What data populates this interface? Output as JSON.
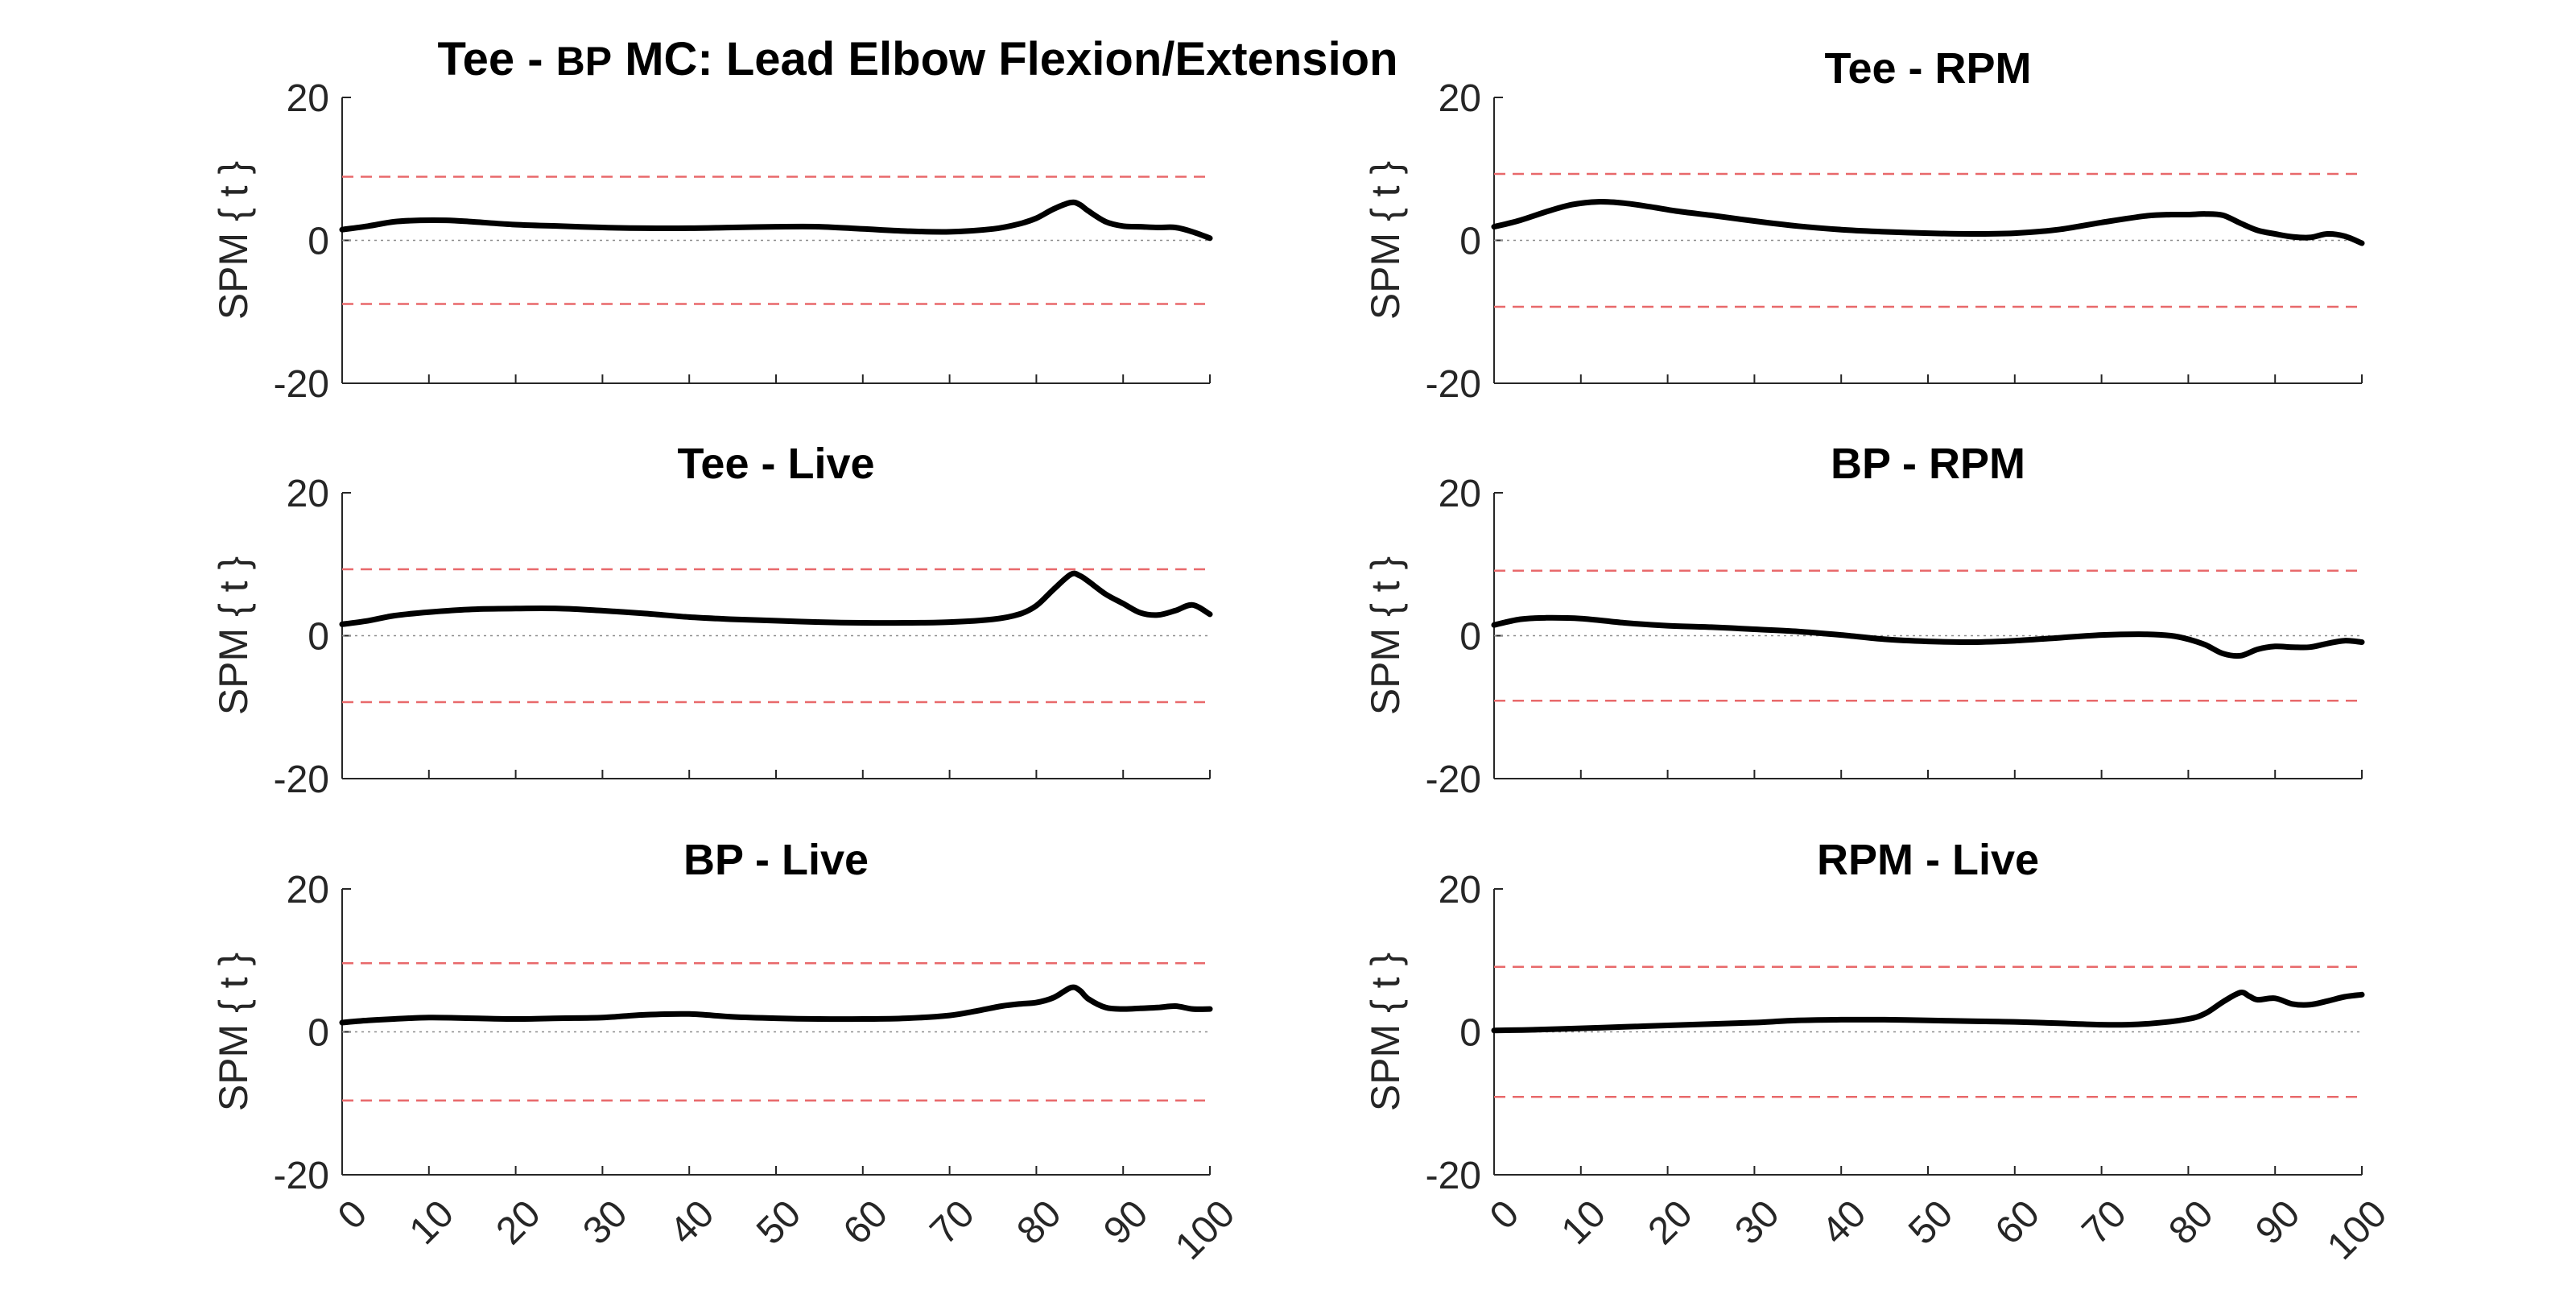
{
  "figure": {
    "title_part1": "Tee - ",
    "title_part2": "BP",
    "title_part3": " MC: Lead Elbow Flexion/Extension"
  },
  "chart_data": [
    {
      "type": "line",
      "title": "Tee - RPM",
      "ylabel": "SPM { t }",
      "xlabel": "",
      "xlim": [
        0,
        100
      ],
      "ylim": [
        -20,
        20
      ],
      "yticks": [
        20,
        0,
        -20
      ],
      "xticks": [
        0,
        10,
        20,
        30,
        40,
        50,
        60,
        70,
        80,
        90,
        100
      ],
      "show_xticklabels": false,
      "threshold": 9.3,
      "series": [
        {
          "x": [
            0,
            3,
            6,
            9,
            12,
            15,
            18,
            21,
            25,
            30,
            35,
            40,
            45,
            50,
            55,
            60,
            65,
            70,
            75,
            78,
            80,
            82,
            84,
            86,
            88,
            90,
            92,
            94,
            96,
            98,
            100
          ],
          "y": [
            1.9,
            2.8,
            4.0,
            5.0,
            5.4,
            5.2,
            4.7,
            4.1,
            3.5,
            2.7,
            2.0,
            1.5,
            1.2,
            1.0,
            0.9,
            1.0,
            1.5,
            2.5,
            3.4,
            3.6,
            3.6,
            3.7,
            3.5,
            2.4,
            1.4,
            0.9,
            0.5,
            0.4,
            0.9,
            0.6,
            -0.4
          ]
        }
      ]
    },
    {
      "type": "line",
      "title": "",
      "ylabel": "SPM { t }",
      "xlabel": "",
      "xlim": [
        0,
        100
      ],
      "ylim": [
        -20,
        20
      ],
      "yticks": [
        20,
        0,
        -20
      ],
      "xticks": [
        0,
        10,
        20,
        30,
        40,
        50,
        60,
        70,
        80,
        90,
        100
      ],
      "show_xticklabels": false,
      "threshold": 8.9,
      "series": [
        {
          "x": [
            0,
            3,
            6,
            9,
            12,
            15,
            20,
            25,
            30,
            35,
            40,
            45,
            50,
            55,
            60,
            65,
            70,
            75,
            78,
            80,
            82,
            84,
            85,
            86,
            88,
            90,
            92,
            94,
            96,
            98,
            100
          ],
          "y": [
            1.5,
            2.0,
            2.6,
            2.8,
            2.8,
            2.6,
            2.2,
            2.0,
            1.8,
            1.7,
            1.7,
            1.8,
            1.9,
            1.9,
            1.6,
            1.3,
            1.2,
            1.6,
            2.3,
            3.1,
            4.4,
            5.3,
            5.0,
            4.1,
            2.6,
            2.0,
            1.9,
            1.8,
            1.8,
            1.2,
            0.3
          ]
        }
      ]
    },
    {
      "type": "line",
      "title": "Tee - Live",
      "ylabel": "SPM { t }",
      "xlabel": "",
      "xlim": [
        0,
        100
      ],
      "ylim": [
        -20,
        20
      ],
      "yticks": [
        20,
        0,
        -20
      ],
      "xticks": [
        0,
        10,
        20,
        30,
        40,
        50,
        60,
        70,
        80,
        90,
        100
      ],
      "show_xticklabels": false,
      "threshold": 9.3,
      "series": [
        {
          "x": [
            0,
            3,
            6,
            10,
            15,
            20,
            25,
            30,
            35,
            40,
            45,
            50,
            55,
            60,
            65,
            70,
            75,
            78,
            80,
            82,
            84,
            85,
            86,
            88,
            90,
            92,
            94,
            96,
            98,
            100
          ],
          "y": [
            1.6,
            2.1,
            2.8,
            3.3,
            3.7,
            3.8,
            3.8,
            3.5,
            3.1,
            2.6,
            2.3,
            2.1,
            1.9,
            1.8,
            1.8,
            1.9,
            2.3,
            3.0,
            4.2,
            6.5,
            8.6,
            8.4,
            7.6,
            5.8,
            4.5,
            3.2,
            2.9,
            3.5,
            4.3,
            3.0
          ]
        }
      ]
    },
    {
      "type": "line",
      "title": "BP - RPM",
      "ylabel": "SPM { t }",
      "xlabel": "",
      "xlim": [
        0,
        100
      ],
      "ylim": [
        -20,
        20
      ],
      "yticks": [
        20,
        0,
        -20
      ],
      "xticks": [
        0,
        10,
        20,
        30,
        40,
        50,
        60,
        70,
        80,
        90,
        100
      ],
      "show_xticklabels": false,
      "threshold": 9.1,
      "series": [
        {
          "x": [
            0,
            3,
            6,
            10,
            15,
            20,
            25,
            30,
            35,
            40,
            45,
            50,
            55,
            60,
            65,
            70,
            75,
            78,
            80,
            82,
            84,
            86,
            88,
            90,
            92,
            94,
            96,
            98,
            100
          ],
          "y": [
            1.5,
            2.3,
            2.5,
            2.4,
            1.8,
            1.4,
            1.2,
            0.9,
            0.6,
            0.1,
            -0.5,
            -0.8,
            -0.9,
            -0.7,
            -0.3,
            0.1,
            0.2,
            0.0,
            -0.5,
            -1.3,
            -2.5,
            -2.8,
            -1.9,
            -1.5,
            -1.6,
            -1.6,
            -1.1,
            -0.7,
            -0.9
          ]
        }
      ]
    },
    {
      "type": "line",
      "title": "BP - Live",
      "ylabel": "SPM { t }",
      "xlabel": "",
      "xlim": [
        0,
        100
      ],
      "ylim": [
        -20,
        20
      ],
      "yticks": [
        20,
        0,
        -20
      ],
      "xticks": [
        0,
        10,
        20,
        30,
        40,
        50,
        60,
        70,
        80,
        90,
        100
      ],
      "show_xticklabels": true,
      "threshold": 9.6,
      "series": [
        {
          "x": [
            0,
            3,
            6,
            10,
            15,
            20,
            25,
            30,
            35,
            40,
            45,
            50,
            55,
            60,
            65,
            70,
            73,
            76,
            78,
            80,
            82,
            84,
            85,
            86,
            88,
            90,
            92,
            94,
            96,
            98,
            100
          ],
          "y": [
            1.3,
            1.6,
            1.8,
            2.0,
            1.9,
            1.8,
            1.9,
            2.0,
            2.4,
            2.5,
            2.1,
            1.9,
            1.8,
            1.8,
            1.9,
            2.3,
            2.9,
            3.6,
            3.9,
            4.1,
            4.8,
            6.2,
            5.8,
            4.6,
            3.4,
            3.2,
            3.3,
            3.4,
            3.6,
            3.2,
            3.2
          ]
        }
      ]
    },
    {
      "type": "line",
      "title": "RPM - Live",
      "ylabel": "SPM { t }",
      "xlabel": "",
      "xlim": [
        0,
        100
      ],
      "ylim": [
        -20,
        20
      ],
      "yticks": [
        20,
        0,
        -20
      ],
      "xticks": [
        0,
        10,
        20,
        30,
        40,
        50,
        60,
        70,
        80,
        90,
        100
      ],
      "show_xticklabels": true,
      "threshold": 9.1,
      "series": [
        {
          "x": [
            0,
            5,
            10,
            15,
            20,
            25,
            30,
            35,
            40,
            45,
            50,
            55,
            60,
            65,
            70,
            73,
            76,
            80,
            82,
            84,
            86,
            87,
            88,
            90,
            92,
            94,
            96,
            98,
            100
          ],
          "y": [
            0.2,
            0.3,
            0.5,
            0.7,
            0.9,
            1.1,
            1.3,
            1.6,
            1.7,
            1.7,
            1.6,
            1.5,
            1.4,
            1.2,
            1.0,
            1.0,
            1.2,
            1.8,
            2.6,
            4.2,
            5.5,
            5.0,
            4.5,
            4.7,
            3.9,
            3.8,
            4.3,
            4.9,
            5.2
          ]
        }
      ]
    }
  ]
}
